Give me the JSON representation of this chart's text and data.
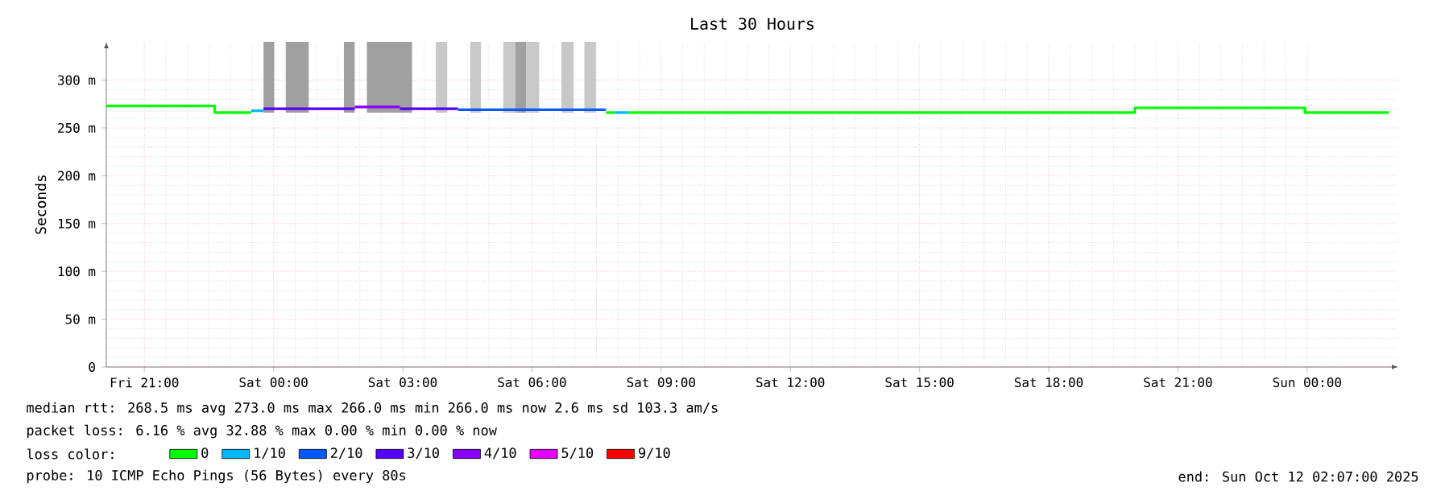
{
  "chart_data": {
    "type": "step",
    "title": "Last 30 Hours",
    "ylabel": "Seconds",
    "xlim": [
      "2025-10-10T20:07",
      "2025-10-12T02:07"
    ],
    "ylim": [
      0,
      340
    ],
    "xticks": [
      {
        "value": "2025-10-10T21:00",
        "label": "Fri 21:00"
      },
      {
        "value": "2025-10-11T00:00",
        "label": "Sat 00:00"
      },
      {
        "value": "2025-10-11T03:00",
        "label": "Sat 03:00"
      },
      {
        "value": "2025-10-11T06:00",
        "label": "Sat 06:00"
      },
      {
        "value": "2025-10-11T09:00",
        "label": "Sat 09:00"
      },
      {
        "value": "2025-10-11T12:00",
        "label": "Sat 12:00"
      },
      {
        "value": "2025-10-11T15:00",
        "label": "Sat 15:00"
      },
      {
        "value": "2025-10-11T18:00",
        "label": "Sat 18:00"
      },
      {
        "value": "2025-10-11T21:00",
        "label": "Sat 21:00"
      },
      {
        "value": "2025-10-12T00:00",
        "label": "Sun 00:00"
      }
    ],
    "yticks": [
      {
        "value": 0,
        "label": "0"
      },
      {
        "value": 50,
        "label": "50 m"
      },
      {
        "value": 100,
        "label": "100 m"
      },
      {
        "value": 150,
        "label": "150 m"
      },
      {
        "value": 200,
        "label": "200 m"
      },
      {
        "value": 250,
        "label": "250 m"
      },
      {
        "value": 300,
        "label": "300 m"
      }
    ],
    "grid": true,
    "legend": "bottom",
    "legend_title": "loss color:",
    "series": [
      {
        "name": "0",
        "color": "#00ff00",
        "x": [
          "2025-10-10T20:07",
          "2025-10-10T22:38",
          "2025-10-10T22:38",
          "2025-10-10T23:29",
          "2025-10-10T23:30",
          "2025-10-11T07:43",
          "2025-10-11T07:56",
          "2025-10-11T07:57",
          "2025-10-11T08:14",
          "2025-10-11T20:00",
          "2025-10-11T20:00",
          "2025-10-11T23:57",
          "2025-10-11T23:57",
          "2025-10-12T01:54"
        ],
        "values": [
          273,
          273,
          266,
          266,
          null,
          266,
          266,
          null,
          266,
          266,
          271,
          271,
          266,
          266
        ]
      },
      {
        "name": "1/10",
        "color": "#00b8ff",
        "x": [
          "2025-10-10T23:29",
          "2025-10-10T23:46",
          "2025-10-10T23:48",
          "2025-10-11T07:56",
          "2025-10-11T08:14"
        ],
        "values": [
          268,
          268,
          null,
          266,
          266
        ]
      },
      {
        "name": "2/10",
        "color": "#0059ff",
        "x": [
          "2025-10-11T04:17",
          "2025-10-11T07:43"
        ],
        "values": [
          269,
          269
        ]
      },
      {
        "name": "3/10",
        "color": "#5500ff",
        "x": [
          "2025-10-10T23:46",
          "2025-10-11T01:53",
          "2025-10-11T01:54",
          "2025-10-11T02:56",
          "2025-10-11T04:17"
        ],
        "values": [
          270,
          270,
          null,
          270,
          270
        ]
      },
      {
        "name": "4/10",
        "color": "#8a00ff",
        "x": [
          "2025-10-11T01:53",
          "2025-10-11T02:56"
        ],
        "values": [
          272,
          272
        ]
      },
      {
        "name": "5/10",
        "color": "#e600ff"
      },
      {
        "name": "9/10",
        "color": "#ff0000"
      }
    ],
    "bands": [
      {
        "axis": "x",
        "from": "2025-10-10T23:46",
        "to": "2025-10-11T00:01",
        "color": "#a0a0a0"
      },
      {
        "axis": "x",
        "from": "2025-10-11T00:17",
        "to": "2025-10-11T00:49",
        "color": "#a0a0a0"
      },
      {
        "axis": "x",
        "from": "2025-10-11T01:38",
        "to": "2025-10-11T01:53",
        "color": "#a0a0a0"
      },
      {
        "axis": "x",
        "from": "2025-10-11T02:10",
        "to": "2025-10-11T03:13",
        "color": "#a0a0a0"
      },
      {
        "axis": "x",
        "from": "2025-10-11T03:46",
        "to": "2025-10-11T04:02",
        "color": "#c8c8c8"
      },
      {
        "axis": "x",
        "from": "2025-10-11T04:34",
        "to": "2025-10-11T04:49",
        "color": "#c8c8c8"
      },
      {
        "axis": "x",
        "from": "2025-10-11T05:20",
        "to": "2025-10-11T05:37",
        "color": "#c8c8c8"
      },
      {
        "axis": "x",
        "from": "2025-10-11T05:37",
        "to": "2025-10-11T05:52",
        "color": "#a0a0a0"
      },
      {
        "axis": "x",
        "from": "2025-10-11T05:52",
        "to": "2025-10-11T06:10",
        "color": "#c8c8c8"
      },
      {
        "axis": "x",
        "from": "2025-10-11T06:41",
        "to": "2025-10-11T06:58",
        "color": "#c8c8c8"
      },
      {
        "axis": "x",
        "from": "2025-10-11T07:13",
        "to": "2025-10-11T07:29",
        "color": "#c8c8c8"
      }
    ],
    "annotations": [
      "median rtt:  268.5 ms avg  273.0 ms max  266.0 ms min  266.0 ms now  2.6 ms sd  103.3   am/s",
      "packet loss: 6.16 % avg  32.88 % max  0.00 % min  0.00 % now",
      "probe:       10 ICMP Echo Pings (56 Bytes) every 80s",
      "end: Sun Oct 12 02:07:00 2025"
    ]
  }
}
